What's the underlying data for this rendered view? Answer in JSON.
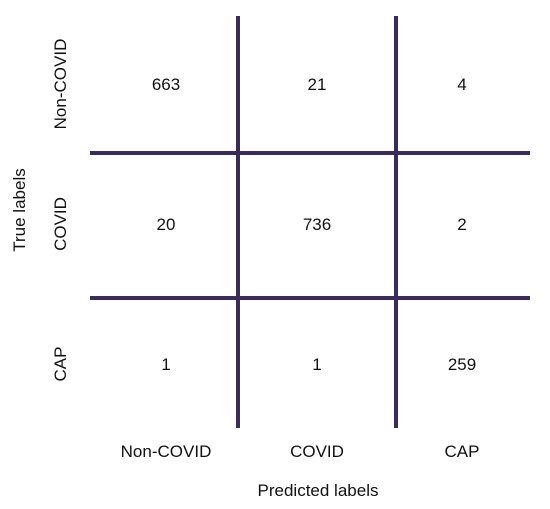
{
  "chart_data": {
    "type": "heatmap",
    "title": "",
    "xlabel": "Predicted labels",
    "ylabel": "True labels",
    "x_categories": [
      "Non-COVID",
      "COVID",
      "CAP"
    ],
    "y_categories": [
      "Non-COVID",
      "COVID",
      "CAP"
    ],
    "values": [
      [
        663,
        21,
        4
      ],
      [
        20,
        736,
        2
      ],
      [
        1,
        1,
        259
      ]
    ],
    "grid_color": "#3b2a5c",
    "legend": "none"
  }
}
